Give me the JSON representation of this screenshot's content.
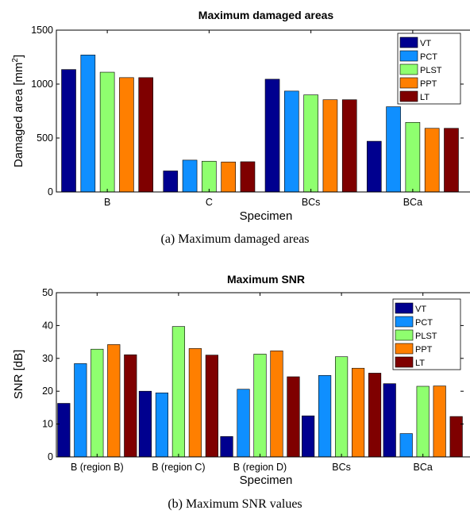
{
  "legend_series": [
    "VT",
    "PCT",
    "PLST",
    "PPT",
    "LT"
  ],
  "colors": {
    "VT": "#00008f",
    "PCT": "#0f8fff",
    "PLST": "#8fff6f",
    "PPT": "#ff7f00",
    "LT": "#7f0000"
  },
  "chart_data": [
    {
      "type": "bar",
      "title": "Maximum damaged areas",
      "xlabel": "Specimen",
      "ylabel_main": "Damaged area [mm",
      "ylabel_sup": "2",
      "ylabel_end": "]",
      "ylim": [
        0,
        1500
      ],
      "yticks": [
        0,
        500,
        1000,
        1500
      ],
      "categories": [
        "B",
        "C",
        "BCs",
        "BCa"
      ],
      "legend": "top-right",
      "series": [
        {
          "name": "VT",
          "values": [
            1135,
            195,
            1045,
            470
          ]
        },
        {
          "name": "PCT",
          "values": [
            1270,
            295,
            935,
            790
          ]
        },
        {
          "name": "PLST",
          "values": [
            1110,
            285,
            900,
            645
          ]
        },
        {
          "name": "PPT",
          "values": [
            1060,
            278,
            855,
            590
          ]
        },
        {
          "name": "LT",
          "values": [
            1060,
            280,
            855,
            590
          ]
        }
      ],
      "caption": "(a) Maximum damaged areas"
    },
    {
      "type": "bar",
      "title": "Maximum SNR",
      "xlabel": "Specimen",
      "ylabel_main": "SNR [dB]",
      "ylabel_sup": "",
      "ylabel_end": "",
      "ylim": [
        0,
        50
      ],
      "yticks": [
        0,
        10,
        20,
        30,
        40,
        50
      ],
      "categories": [
        "B (region B)",
        "B (region C)",
        "B (region D)",
        "BCs",
        "BCa"
      ],
      "legend": "top-right",
      "series": [
        {
          "name": "VT",
          "values": [
            16.3,
            20.0,
            6.2,
            12.5,
            22.3
          ]
        },
        {
          "name": "PCT",
          "values": [
            28.4,
            19.5,
            20.6,
            24.8,
            7.1
          ]
        },
        {
          "name": "PLST",
          "values": [
            32.8,
            39.7,
            31.3,
            30.5,
            21.5
          ]
        },
        {
          "name": "PPT",
          "values": [
            34.2,
            33.0,
            32.3,
            27.0,
            21.6
          ]
        },
        {
          "name": "LT",
          "values": [
            31.1,
            31.0,
            24.4,
            25.5,
            12.3
          ]
        }
      ],
      "caption": "(b) Maximum SNR values"
    }
  ]
}
